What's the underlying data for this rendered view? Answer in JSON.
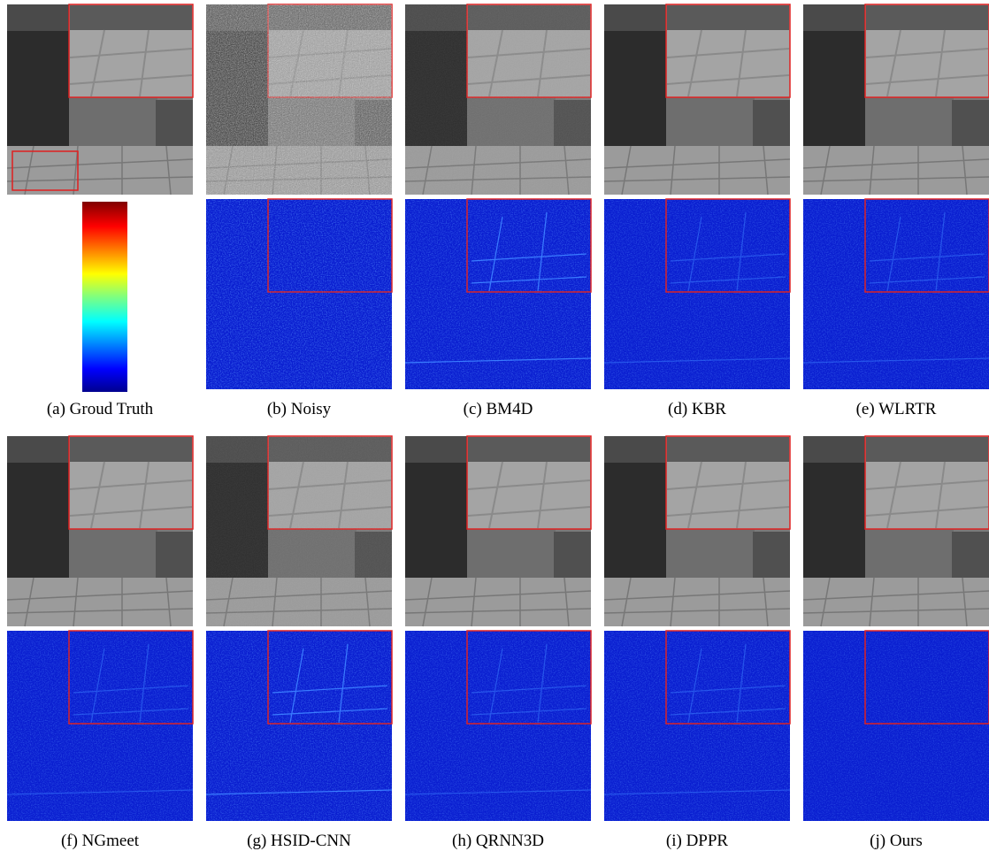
{
  "figure": {
    "panels": [
      {
        "caption": "(a) Groud Truth"
      },
      {
        "caption": "(b) Noisy"
      },
      {
        "caption": "(c) BM4D"
      },
      {
        "caption": "(d) KBR"
      },
      {
        "caption": "(e) WLRTR"
      },
      {
        "caption": "(f) NGmeet"
      },
      {
        "caption": "(g) HSID-CNN"
      },
      {
        "caption": "(h) QRNN3D"
      },
      {
        "caption": "(i) DPPR"
      },
      {
        "caption": "(j) Ours"
      }
    ]
  }
}
